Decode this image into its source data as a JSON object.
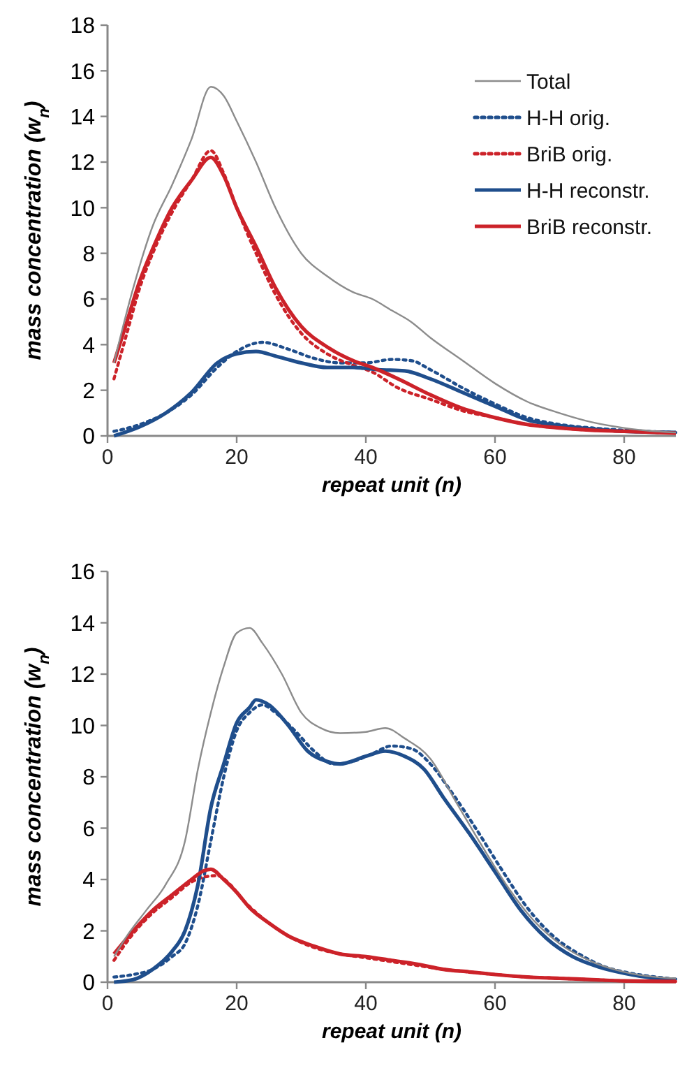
{
  "chart_data": [
    {
      "type": "line",
      "xlabel": "repeat unit (n)",
      "ylabel": "mass concentration (w$_{n}$)",
      "xlim": [
        0,
        88
      ],
      "xticks": [
        0,
        20,
        40,
        60,
        80
      ],
      "ylim": [
        0,
        18
      ],
      "yticks": [
        0,
        2,
        4,
        6,
        8,
        10,
        12,
        14,
        16,
        18
      ],
      "grid": false,
      "legend": "top right",
      "series": [
        {
          "name": "Total",
          "color": "#8c8c8c",
          "line_style": "solid",
          "x": [
            1,
            4,
            7,
            10,
            13,
            16,
            18,
            20,
            23,
            26,
            30,
            34,
            38,
            41,
            44,
            47,
            50,
            55,
            60,
            65,
            70,
            75,
            80,
            85,
            88
          ],
          "values": [
            3.2,
            6.5,
            9.2,
            11,
            13,
            15.3,
            14.9,
            13.8,
            12,
            10,
            8,
            7,
            6.3,
            6.0,
            5.5,
            5.0,
            4.3,
            3.3,
            2.3,
            1.5,
            1.0,
            0.6,
            0.35,
            0.2,
            0.15
          ]
        },
        {
          "name": "H-H orig.",
          "color": "#1f4e8c",
          "line_style": "dotted",
          "x": [
            1,
            5,
            9,
            13,
            17,
            20,
            24,
            28,
            32,
            36,
            40,
            44,
            47,
            50,
            55,
            60,
            65,
            70,
            75,
            80,
            88
          ],
          "values": [
            0.2,
            0.5,
            1,
            1.8,
            3,
            3.7,
            4.1,
            3.8,
            3.4,
            3.2,
            3.2,
            3.35,
            3.3,
            2.9,
            2.1,
            1.4,
            0.8,
            0.5,
            0.35,
            0.25,
            0.15
          ]
        },
        {
          "name": "BriB orig.",
          "color": "#cc2229",
          "line_style": "dotted",
          "x": [
            1,
            3,
            5,
            7,
            10,
            13,
            16,
            18,
            20,
            23,
            26,
            30,
            34,
            38,
            41,
            45,
            50,
            55,
            60,
            65,
            70,
            75,
            80,
            88
          ],
          "values": [
            2.5,
            4.5,
            6.5,
            8,
            9.8,
            11.2,
            12.5,
            11.5,
            10,
            8,
            6.2,
            4.5,
            3.6,
            3.1,
            2.8,
            2.1,
            1.6,
            1.1,
            0.8,
            0.5,
            0.35,
            0.25,
            0.2,
            0.12
          ]
        },
        {
          "name": "H-H reconstr.",
          "color": "#1f4e8c",
          "line_style": "solid",
          "x": [
            1,
            5,
            9,
            13,
            17,
            20,
            23,
            26,
            30,
            34,
            38,
            42,
            46,
            50,
            55,
            60,
            65,
            70,
            75,
            80,
            88
          ],
          "values": [
            0,
            0.4,
            1,
            1.9,
            3.2,
            3.6,
            3.7,
            3.5,
            3.2,
            3.0,
            3.0,
            2.9,
            2.85,
            2.5,
            1.9,
            1.3,
            0.7,
            0.45,
            0.3,
            0.2,
            0.15
          ]
        },
        {
          "name": "BriB reconstr.",
          "color": "#cc2229",
          "line_style": "solid",
          "x": [
            1,
            3,
            5,
            7,
            10,
            13,
            16,
            18,
            20,
            23,
            26,
            30,
            34,
            38,
            41,
            45,
            50,
            55,
            60,
            65,
            70,
            75,
            80,
            88
          ],
          "values": [
            3.2,
            5,
            6.8,
            8.2,
            10,
            11.2,
            12.2,
            11.4,
            10,
            8.3,
            6.5,
            4.8,
            3.9,
            3.3,
            3.0,
            2.5,
            1.8,
            1.2,
            0.8,
            0.5,
            0.35,
            0.25,
            0.2,
            0.12
          ]
        }
      ]
    },
    {
      "type": "line",
      "xlabel": "repeat unit (n)",
      "ylabel": "mass concentration (w$_{n}$)",
      "xlim": [
        0,
        88
      ],
      "xticks": [
        0,
        20,
        40,
        60,
        80
      ],
      "ylim": [
        0,
        16
      ],
      "yticks": [
        0,
        2,
        4,
        6,
        8,
        10,
        12,
        14,
        16
      ],
      "grid": false,
      "legend": false,
      "series": [
        {
          "color": "#8c8c8c",
          "line_style": "solid",
          "x": [
            1,
            3,
            6,
            9,
            12,
            14,
            16,
            18,
            20,
            22,
            24,
            27,
            30,
            33,
            36,
            40,
            43,
            46,
            50,
            54,
            58,
            62,
            66,
            70,
            75,
            80,
            85,
            88
          ],
          "values": [
            1.0,
            1.8,
            2.8,
            3.8,
            5.5,
            8.3,
            10.5,
            12.3,
            13.6,
            13.8,
            13.2,
            12,
            10.5,
            9.9,
            9.7,
            9.75,
            9.9,
            9.5,
            8.7,
            7,
            5.3,
            3.7,
            2.4,
            1.5,
            0.8,
            0.4,
            0.2,
            0.15
          ]
        },
        {
          "color": "#1f4e8c",
          "line_style": "dotted",
          "x": [
            1,
            4,
            7,
            10,
            12,
            14,
            16,
            18,
            20,
            22,
            24,
            26,
            29,
            32,
            35,
            38,
            41,
            44,
            47,
            50,
            53,
            57,
            61,
            65,
            69,
            73,
            77,
            81,
            85,
            88
          ],
          "values": [
            0.2,
            0.3,
            0.5,
            1,
            1.5,
            3,
            5.5,
            8,
            9.8,
            10.5,
            10.8,
            10.5,
            9.8,
            9,
            8.5,
            8.6,
            8.9,
            9.2,
            9.1,
            8.5,
            7.5,
            6,
            4.4,
            2.9,
            1.8,
            1.1,
            0.6,
            0.35,
            0.2,
            0.12
          ]
        },
        {
          "color": "#cc2229",
          "line_style": "dotted",
          "x": [
            1,
            4,
            7,
            10,
            13,
            15,
            17,
            19,
            21,
            24,
            28,
            32,
            36,
            40,
            44,
            48,
            52,
            56,
            60,
            65,
            70,
            75,
            80,
            88
          ],
          "values": [
            0.85,
            1.9,
            2.7,
            3.3,
            3.9,
            4.1,
            4.15,
            3.8,
            3.2,
            2.5,
            1.8,
            1.35,
            1.1,
            0.95,
            0.8,
            0.65,
            0.5,
            0.4,
            0.3,
            0.2,
            0.15,
            0.1,
            0.05,
            0.03
          ]
        },
        {
          "color": "#1f4e8c",
          "line_style": "solid",
          "x": [
            1,
            4,
            7,
            10,
            12,
            14,
            16,
            18,
            20,
            22,
            23,
            25,
            28,
            31,
            34,
            36,
            40,
            43,
            46,
            49,
            52,
            56,
            60,
            64,
            68,
            72,
            76,
            80,
            85,
            88
          ],
          "values": [
            0,
            0.1,
            0.5,
            1.2,
            2,
            3.8,
            6.8,
            8.5,
            10.1,
            10.7,
            11.0,
            10.8,
            10,
            9,
            8.6,
            8.5,
            8.8,
            9.0,
            8.8,
            8.3,
            7.2,
            5.8,
            4.3,
            2.8,
            1.7,
            1.0,
            0.6,
            0.35,
            0.15,
            0.1
          ]
        },
        {
          "color": "#cc2229",
          "line_style": "solid",
          "x": [
            1,
            4,
            7,
            10,
            13,
            15,
            16,
            18,
            20,
            22,
            25,
            28,
            32,
            36,
            40,
            44,
            48,
            52,
            56,
            60,
            65,
            70,
            75,
            80,
            88
          ],
          "values": [
            1.1,
            2,
            2.8,
            3.4,
            4.0,
            4.35,
            4.4,
            4,
            3.5,
            2.9,
            2.3,
            1.8,
            1.4,
            1.1,
            1.0,
            0.85,
            0.7,
            0.5,
            0.4,
            0.3,
            0.2,
            0.15,
            0.1,
            0.05,
            0.03
          ]
        }
      ]
    }
  ]
}
